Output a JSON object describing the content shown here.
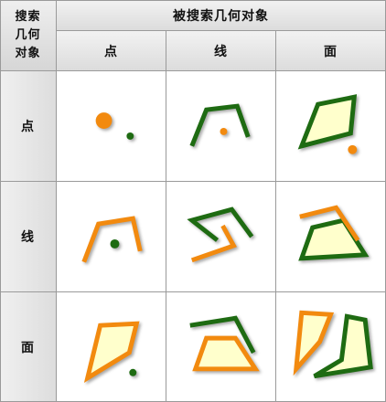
{
  "table": {
    "corner_label_line1": "搜索",
    "corner_label_line2": "几何",
    "corner_label_line3": "对象",
    "top_header": "被搜索几何对象",
    "col_headers": [
      "点",
      "线",
      "面"
    ],
    "row_headers": [
      "点",
      "线",
      "面"
    ]
  },
  "colors": {
    "search_object": "#f28a0f",
    "searched_object": "#1e6b12",
    "polygon_fill": "#ffffcc"
  }
}
